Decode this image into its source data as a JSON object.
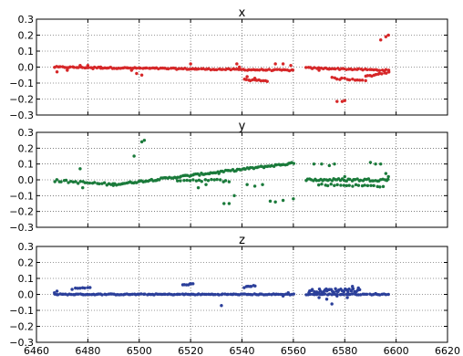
{
  "chart_data": [
    {
      "type": "scatter",
      "title": "x",
      "xlim": [
        6460,
        6620
      ],
      "ylim": [
        -0.3,
        0.3
      ],
      "grid": true,
      "color": "#d62728",
      "x_ticks": [],
      "y_ticks": [
        "0.3",
        "0.2",
        "0.1",
        "0.0",
        "−0.1",
        "−0.2",
        "−0.3"
      ],
      "segments": [
        {
          "x0": 6467,
          "x1": 6560,
          "y0": 0.0,
          "y1": -0.02,
          "n": 120,
          "jitter": 0.004
        },
        {
          "x0": 6565,
          "x1": 6597,
          "y0": -0.005,
          "y1": -0.02,
          "n": 40,
          "jitter": 0.004
        },
        {
          "x0": 6588,
          "x1": 6597,
          "y0": -0.06,
          "y1": -0.03,
          "n": 12,
          "jitter": 0.006
        },
        {
          "x0": 6575,
          "x1": 6588,
          "y0": -0.07,
          "y1": -0.08,
          "n": 14,
          "jitter": 0.006
        },
        {
          "x0": 6541,
          "x1": 6550,
          "y0": -0.08,
          "y1": -0.085,
          "n": 12,
          "jitter": 0.005
        }
      ],
      "points": [
        [
          6468,
          -0.03
        ],
        [
          6472,
          -0.02
        ],
        [
          6477,
          0.01
        ],
        [
          6480,
          0.01
        ],
        [
          6482,
          -0.01
        ],
        [
          6485,
          0.0
        ],
        [
          6497,
          -0.02
        ],
        [
          6499,
          -0.04
        ],
        [
          6501,
          -0.05
        ],
        [
          6520,
          0.02
        ],
        [
          6522,
          -0.01
        ],
        [
          6538,
          0.02
        ],
        [
          6539,
          0.0
        ],
        [
          6542,
          -0.06
        ],
        [
          6545,
          -0.07
        ],
        [
          6553,
          0.02
        ],
        [
          6556,
          0.02
        ],
        [
          6559,
          0.01
        ],
        [
          6570,
          -0.02
        ],
        [
          6574,
          -0.01
        ],
        [
          6577,
          -0.215
        ],
        [
          6579,
          -0.215
        ],
        [
          6580,
          -0.21
        ],
        [
          6594,
          0.17
        ],
        [
          6596,
          0.19
        ],
        [
          6597,
          0.2
        ]
      ]
    },
    {
      "type": "scatter",
      "title": "y",
      "xlim": [
        6460,
        6620
      ],
      "ylim": [
        -0.3,
        0.3
      ],
      "grid": true,
      "color": "#1a7a3a",
      "x_ticks": [],
      "y_ticks": [
        "0.3",
        "0.2",
        "0.1",
        "0.0",
        "−0.1",
        "−0.2",
        "−0.3"
      ],
      "segments": [
        {
          "x0": 6467,
          "x1": 6490,
          "y0": -0.005,
          "y1": -0.03,
          "n": 26,
          "jitter": 0.008
        },
        {
          "x0": 6490,
          "x1": 6560,
          "y0": -0.03,
          "y1": 0.105,
          "n": 110,
          "jitter": 0.006
        },
        {
          "x0": 6515,
          "x1": 6535,
          "y0": 0.0,
          "y1": -0.005,
          "n": 18,
          "jitter": 0.008
        },
        {
          "x0": 6565,
          "x1": 6597,
          "y0": 0.0,
          "y1": 0.0,
          "n": 46,
          "jitter": 0.008
        },
        {
          "x0": 6570,
          "x1": 6595,
          "y0": -0.03,
          "y1": -0.04,
          "n": 22,
          "jitter": 0.006
        }
      ],
      "points": [
        [
          6477,
          0.07
        ],
        [
          6478,
          -0.05
        ],
        [
          6501,
          0.24
        ],
        [
          6502,
          0.25
        ],
        [
          6498,
          0.15
        ],
        [
          6523,
          -0.05
        ],
        [
          6526,
          -0.03
        ],
        [
          6531,
          0.04
        ],
        [
          6533,
          -0.15
        ],
        [
          6535,
          -0.15
        ],
        [
          6537,
          -0.1
        ],
        [
          6542,
          -0.03
        ],
        [
          6545,
          -0.04
        ],
        [
          6548,
          -0.03
        ],
        [
          6551,
          -0.135
        ],
        [
          6553,
          -0.14
        ],
        [
          6556,
          -0.13
        ],
        [
          6560,
          -0.12
        ],
        [
          6568,
          0.1
        ],
        [
          6571,
          0.1
        ],
        [
          6574,
          0.09
        ],
        [
          6576,
          0.1
        ],
        [
          6580,
          0.02
        ],
        [
          6590,
          0.11
        ],
        [
          6592,
          0.1
        ],
        [
          6594,
          0.1
        ],
        [
          6597,
          0.02
        ],
        [
          6596,
          0.04
        ]
      ]
    },
    {
      "type": "scatter",
      "title": "z",
      "xlim": [
        6460,
        6620
      ],
      "ylim": [
        -0.3,
        0.3
      ],
      "grid": true,
      "color": "#2b3f9a",
      "x_ticks": [
        "6460",
        "6480",
        "6500",
        "6520",
        "6540",
        "6560",
        "6580",
        "6600",
        "6620"
      ],
      "y_ticks": [
        "0.3",
        "0.2",
        "0.1",
        "0.0",
        "−0.1",
        "−0.2",
        "−0.3"
      ],
      "segments": [
        {
          "x0": 6467,
          "x1": 6560,
          "y0": 0.0,
          "y1": 0.0,
          "n": 130,
          "jitter": 0.003
        },
        {
          "x0": 6565,
          "x1": 6597,
          "y0": 0.0,
          "y1": 0.0,
          "n": 40,
          "jitter": 0.003
        },
        {
          "x0": 6566,
          "x1": 6586,
          "y0": 0.02,
          "y1": 0.03,
          "n": 40,
          "jitter": 0.012
        },
        {
          "x0": 6474,
          "x1": 6481,
          "y0": 0.035,
          "y1": 0.045,
          "n": 8,
          "jitter": 0.004
        },
        {
          "x0": 6517,
          "x1": 6521,
          "y0": 0.06,
          "y1": 0.065,
          "n": 7,
          "jitter": 0.003
        },
        {
          "x0": 6541,
          "x1": 6545,
          "y0": 0.045,
          "y1": 0.055,
          "n": 7,
          "jitter": 0.003
        }
      ],
      "points": [
        [
          6467,
          0.01
        ],
        [
          6468,
          0.02
        ],
        [
          6532,
          -0.07
        ],
        [
          6556,
          -0.01
        ],
        [
          6558,
          0.01
        ],
        [
          6570,
          -0.02
        ],
        [
          6573,
          -0.03
        ],
        [
          6575,
          -0.06
        ],
        [
          6577,
          -0.01
        ],
        [
          6581,
          -0.02
        ],
        [
          6583,
          0.05
        ],
        [
          6592,
          0.005
        ]
      ]
    }
  ]
}
